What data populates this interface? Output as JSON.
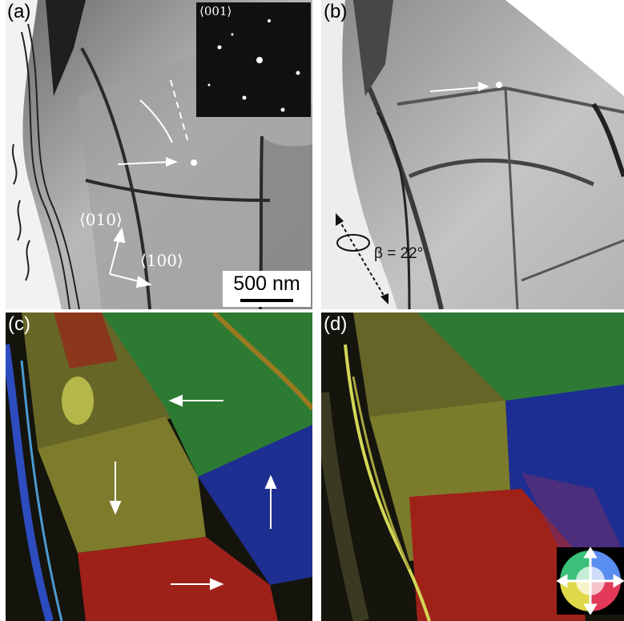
{
  "panels": {
    "a": {
      "label": "(a)",
      "inset_label": "⟨001⟩",
      "axis_labels": {
        "b010": "⟨010⟩",
        "b100": "⟨100⟩"
      },
      "scale_bar": "500 nm"
    },
    "b": {
      "label": "(b)",
      "angle_label": "β = 22°"
    },
    "c": {
      "label": "(c)"
    },
    "d": {
      "label": "(d)"
    }
  },
  "colors": {
    "domain_green": "#2f7a2c",
    "domain_blue": "#1a2a8c",
    "domain_red": "#9c1f1a",
    "domain_yellow": "#8a8a2a"
  },
  "icons": [
    "white-arrow-icon",
    "dashed-double-arrow-icon",
    "rotation-arrow-icon",
    "color-wheel-icon"
  ]
}
